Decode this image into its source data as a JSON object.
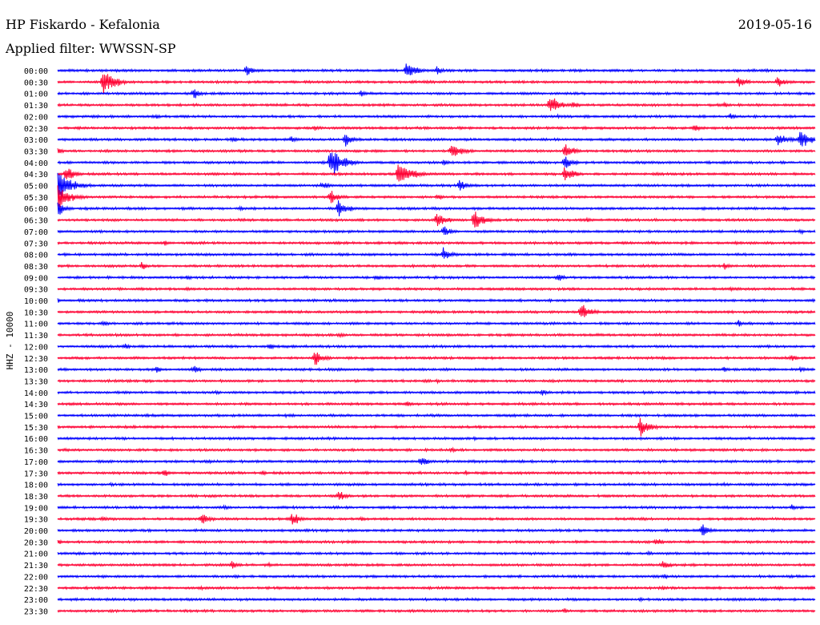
{
  "header": {
    "station_title": "HP Fiskardo - Kefalonia",
    "date": "2019-05-16",
    "filter": "Applied filter: WWSSN-SP"
  },
  "chart_data": {
    "type": "helicorder",
    "title": "HP Fiskardo - Kefalonia",
    "date": "2019-05-16",
    "filter": "WWSSN-SP",
    "ylabel": "HHZ - 10000",
    "line_interval_minutes": 30,
    "minutes_per_line": 30,
    "colors": [
      "#0000ff",
      "#ff0033"
    ],
    "grid": false,
    "rows": [
      {
        "time": "00:00",
        "events": [
          [
            25,
            9
          ],
          [
            46,
            14
          ],
          [
            50,
            6
          ]
        ]
      },
      {
        "time": "00:30",
        "events": [
          [
            6,
            18
          ],
          [
            90,
            9
          ],
          [
            95,
            8
          ]
        ]
      },
      {
        "time": "01:00",
        "events": [
          [
            18,
            8
          ],
          [
            40,
            5
          ]
        ]
      },
      {
        "time": "01:30",
        "events": [
          [
            65,
            14
          ],
          [
            68,
            6
          ],
          [
            88,
            4
          ]
        ]
      },
      {
        "time": "02:00",
        "events": [
          [
            13,
            4
          ],
          [
            66,
            3
          ],
          [
            89,
            5
          ]
        ]
      },
      {
        "time": "02:30",
        "events": [
          [
            13,
            3
          ],
          [
            34,
            4
          ],
          [
            84,
            6
          ]
        ]
      },
      {
        "time": "03:00",
        "events": [
          [
            23,
            6
          ],
          [
            31,
            5
          ],
          [
            38,
            10
          ],
          [
            95,
            12
          ],
          [
            98,
            14
          ]
        ]
      },
      {
        "time": "03:30",
        "events": [
          [
            0,
            5
          ],
          [
            52,
            14
          ],
          [
            67,
            12
          ]
        ]
      },
      {
        "time": "04:00",
        "events": [
          [
            36,
            20
          ],
          [
            51,
            6
          ],
          [
            67,
            10
          ]
        ]
      },
      {
        "time": "04:30",
        "events": [
          [
            1,
            12
          ],
          [
            45,
            20
          ],
          [
            67,
            12
          ]
        ]
      },
      {
        "time": "05:00",
        "events": [
          [
            0,
            22
          ],
          [
            35,
            6
          ],
          [
            53,
            8
          ]
        ]
      },
      {
        "time": "05:30",
        "events": [
          [
            0,
            18
          ],
          [
            36,
            10
          ],
          [
            50,
            6
          ]
        ]
      },
      {
        "time": "06:00",
        "events": [
          [
            0,
            10
          ],
          [
            24,
            4
          ],
          [
            37,
            12
          ]
        ]
      },
      {
        "time": "06:30",
        "events": [
          [
            50,
            12
          ],
          [
            55,
            14
          ],
          [
            70,
            4
          ]
        ]
      },
      {
        "time": "07:00",
        "events": [
          [
            51,
            8
          ],
          [
            98,
            4
          ]
        ]
      },
      {
        "time": "07:30",
        "events": [
          [
            14,
            4
          ],
          [
            63,
            3
          ]
        ]
      },
      {
        "time": "08:00",
        "events": [
          [
            51,
            10
          ]
        ]
      },
      {
        "time": "08:30",
        "events": [
          [
            11,
            6
          ],
          [
            88,
            6
          ]
        ]
      },
      {
        "time": "09:00",
        "events": [
          [
            17,
            4
          ],
          [
            42,
            5
          ],
          [
            66,
            6
          ]
        ]
      },
      {
        "time": "09:30",
        "events": [
          [
            17,
            3
          ],
          [
            89,
            4
          ]
        ]
      },
      {
        "time": "10:00",
        "events": [
          [
            0,
            3
          ],
          [
            65,
            3
          ]
        ]
      },
      {
        "time": "10:30",
        "events": [
          [
            69,
            14
          ]
        ]
      },
      {
        "time": "11:00",
        "events": [
          [
            6,
            5
          ],
          [
            90,
            5
          ]
        ]
      },
      {
        "time": "11:30",
        "events": [
          [
            37,
            4
          ]
        ]
      },
      {
        "time": "12:00",
        "events": [
          [
            9,
            4
          ],
          [
            28,
            6
          ]
        ]
      },
      {
        "time": "12:30",
        "events": [
          [
            34,
            12
          ],
          [
            97,
            5
          ]
        ]
      },
      {
        "time": "13:00",
        "events": [
          [
            13,
            5
          ],
          [
            18,
            7
          ],
          [
            88,
            4
          ],
          [
            98,
            4
          ]
        ]
      },
      {
        "time": "13:30",
        "events": [
          [
            50,
            3
          ]
        ]
      },
      {
        "time": "14:00",
        "events": [
          [
            21,
            4
          ],
          [
            64,
            6
          ]
        ]
      },
      {
        "time": "14:30",
        "events": [
          [
            46,
            5
          ]
        ]
      },
      {
        "time": "15:00",
        "events": [
          [
            30,
            3
          ]
        ]
      },
      {
        "time": "15:30",
        "events": [
          [
            77,
            14
          ]
        ]
      },
      {
        "time": "16:00",
        "events": [
          [
            55,
            3
          ]
        ]
      },
      {
        "time": "16:30",
        "events": [
          [
            1,
            3
          ],
          [
            52,
            4
          ]
        ]
      },
      {
        "time": "17:00",
        "events": [
          [
            20,
            3
          ],
          [
            48,
            8
          ],
          [
            55,
            3
          ]
        ]
      },
      {
        "time": "17:30",
        "events": [
          [
            14,
            6
          ],
          [
            27,
            4
          ],
          [
            54,
            4
          ]
        ]
      },
      {
        "time": "18:00",
        "events": [
          [
            7,
            3
          ],
          [
            88,
            3
          ]
        ]
      },
      {
        "time": "18:30",
        "events": [
          [
            37,
            8
          ]
        ]
      },
      {
        "time": "19:00",
        "events": [
          [
            22,
            4
          ],
          [
            97,
            5
          ]
        ]
      },
      {
        "time": "19:30",
        "events": [
          [
            6,
            4
          ],
          [
            19,
            10
          ],
          [
            31,
            10
          ],
          [
            40,
            4
          ]
        ]
      },
      {
        "time": "20:00",
        "events": [
          [
            49,
            3
          ],
          [
            85,
            10
          ]
        ]
      },
      {
        "time": "20:30",
        "events": [
          [
            0,
            4
          ],
          [
            79,
            6
          ]
        ]
      },
      {
        "time": "21:00",
        "events": [
          [
            78,
            4
          ]
        ]
      },
      {
        "time": "21:30",
        "events": [
          [
            23,
            6
          ],
          [
            28,
            3
          ],
          [
            80,
            8
          ],
          [
            84,
            3
          ]
        ]
      },
      {
        "time": "22:00",
        "events": [
          [
            80,
            4
          ]
        ]
      },
      {
        "time": "22:30",
        "events": [
          [
            19,
            3
          ],
          [
            80,
            3
          ]
        ]
      },
      {
        "time": "23:00",
        "events": [
          [
            10,
            3
          ],
          [
            77,
            3
          ]
        ]
      },
      {
        "time": "23:30",
        "events": [
          [
            67,
            4
          ]
        ]
      }
    ]
  }
}
